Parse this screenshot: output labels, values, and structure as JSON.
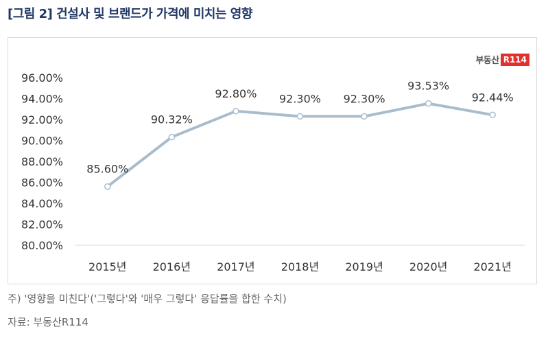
{
  "title": "[그림 2] 건설사 및 브랜드가 가격에 미치는 영향",
  "logo": {
    "text": "부동산",
    "badge": "R114"
  },
  "note": "주) '영향을 미친다'('그렇다'와 '매우 그렇다' 응답률을 합한 수치)",
  "source": "자료: 부동산R114",
  "colors": {
    "line": "#a9bccc",
    "grid": "#d9d9d9",
    "title": "#1f3864",
    "badge": "#e0312c"
  },
  "chart_data": {
    "type": "line",
    "title": "",
    "xlabel": "",
    "ylabel": "",
    "categories": [
      "2015년",
      "2016년",
      "2017년",
      "2018년",
      "2019년",
      "2020년",
      "2021년"
    ],
    "series": [
      {
        "name": "영향을 미친다",
        "values": [
          85.6,
          90.32,
          92.8,
          92.3,
          92.3,
          93.53,
          92.44
        ]
      }
    ],
    "data_labels": [
      "85.60%",
      "90.32%",
      "92.80%",
      "92.30%",
      "92.30%",
      "93.53%",
      "92.44%"
    ],
    "ylim": [
      80,
      96
    ],
    "yticks": [
      80,
      82,
      84,
      86,
      88,
      90,
      92,
      94,
      96
    ],
    "ytick_labels": [
      "80.00%",
      "82.00%",
      "84.00%",
      "86.00%",
      "88.00%",
      "90.00%",
      "92.00%",
      "94.00%",
      "96.00%"
    ],
    "grid": false,
    "legend": "none"
  }
}
